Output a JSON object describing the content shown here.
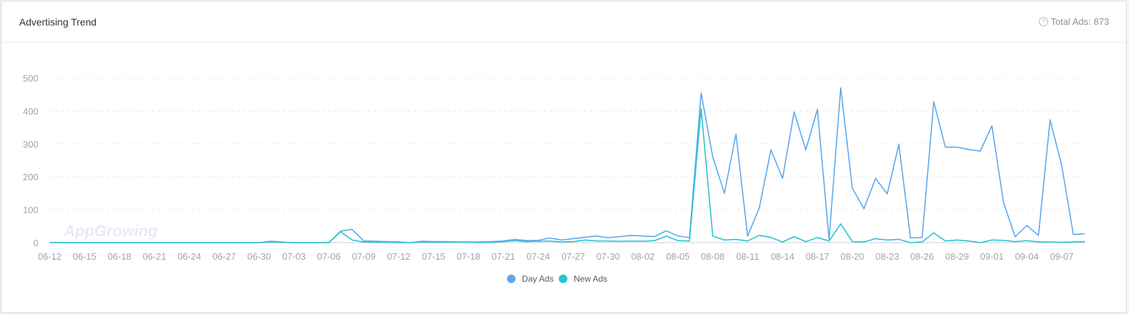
{
  "header": {
    "title": "Advertising Trend",
    "total_label": "Total Ads:",
    "total_value": "873",
    "help_icon": "question-circle-icon"
  },
  "watermark": "AppGrowing",
  "colors": {
    "day_ads": "#5aa9ef",
    "new_ads": "#2ac3d4",
    "grid": "#ececec",
    "axis_text": "#9ea3ad"
  },
  "chart_data": {
    "type": "line",
    "ylim": [
      0,
      500
    ],
    "yticks": [
      0,
      100,
      200,
      300,
      400,
      500
    ],
    "xtick_labels": [
      "06-12",
      "06-15",
      "06-18",
      "06-21",
      "06-24",
      "06-27",
      "06-30",
      "07-03",
      "07-06",
      "07-09",
      "07-12",
      "07-15",
      "07-18",
      "07-21",
      "07-24",
      "07-27",
      "07-30",
      "08-02",
      "08-05",
      "08-08",
      "08-11",
      "08-14",
      "08-17",
      "08-20",
      "08-23",
      "08-26",
      "08-29",
      "09-01",
      "09-04",
      "09-07"
    ],
    "x": [
      "06-12",
      "06-13",
      "06-14",
      "06-15",
      "06-16",
      "06-17",
      "06-18",
      "06-19",
      "06-20",
      "06-21",
      "06-22",
      "06-23",
      "06-24",
      "06-25",
      "06-26",
      "06-27",
      "06-28",
      "06-29",
      "06-30",
      "07-01",
      "07-02",
      "07-03",
      "07-04",
      "07-05",
      "07-06",
      "07-07",
      "07-08",
      "07-09",
      "07-10",
      "07-11",
      "07-12",
      "07-13",
      "07-14",
      "07-15",
      "07-16",
      "07-17",
      "07-18",
      "07-19",
      "07-20",
      "07-21",
      "07-22",
      "07-23",
      "07-24",
      "07-25",
      "07-26",
      "07-27",
      "07-28",
      "07-29",
      "07-30",
      "07-31",
      "08-01",
      "08-02",
      "08-03",
      "08-04",
      "08-05",
      "08-06",
      "08-07",
      "08-08",
      "08-09",
      "08-10",
      "08-11",
      "08-12",
      "08-13",
      "08-14",
      "08-15",
      "08-16",
      "08-17",
      "08-18",
      "08-19",
      "08-20",
      "08-21",
      "08-22",
      "08-23",
      "08-24",
      "08-25",
      "08-26",
      "08-27",
      "08-28",
      "08-29",
      "08-30",
      "08-31",
      "09-01",
      "09-02",
      "09-03",
      "09-04",
      "09-05",
      "09-06",
      "09-07",
      "09-08",
      "09-09"
    ],
    "series": [
      {
        "name": "Day Ads",
        "color": "#5aa9ef",
        "values": [
          0,
          0,
          0,
          0,
          0,
          0,
          0,
          0,
          0,
          0,
          0,
          0,
          0,
          0,
          0,
          0,
          0,
          0,
          0,
          4,
          2,
          0,
          0,
          0,
          0,
          35,
          40,
          5,
          4,
          3,
          2,
          0,
          4,
          3,
          3,
          2,
          2,
          2,
          3,
          5,
          10,
          6,
          7,
          14,
          8,
          12,
          16,
          20,
          15,
          18,
          22,
          20,
          18,
          36,
          20,
          15,
          455,
          260,
          150,
          330,
          20,
          105,
          282,
          195,
          397,
          282,
          405,
          10,
          470,
          165,
          103,
          195,
          148,
          298,
          14,
          16,
          428,
          290,
          290,
          283,
          278,
          355,
          122,
          18,
          52,
          22,
          373,
          235,
          25,
          27
        ]
      },
      {
        "name": "New Ads",
        "color": "#2ac3d4",
        "values": [
          0,
          0,
          0,
          0,
          0,
          0,
          0,
          0,
          0,
          0,
          0,
          0,
          0,
          0,
          0,
          0,
          0,
          0,
          0,
          2,
          1,
          0,
          0,
          0,
          0,
          33,
          8,
          2,
          1,
          1,
          0,
          0,
          2,
          1,
          1,
          1,
          1,
          0,
          1,
          3,
          6,
          3,
          4,
          5,
          2,
          3,
          8,
          5,
          5,
          4,
          5,
          4,
          6,
          20,
          6,
          5,
          407,
          20,
          8,
          10,
          5,
          22,
          16,
          2,
          18,
          3,
          15,
          5,
          57,
          3,
          2,
          12,
          8,
          10,
          0,
          2,
          30,
          5,
          8,
          5,
          0,
          8,
          7,
          3,
          6,
          2,
          2,
          1,
          2,
          3
        ]
      }
    ],
    "legend": "bottom-center"
  }
}
